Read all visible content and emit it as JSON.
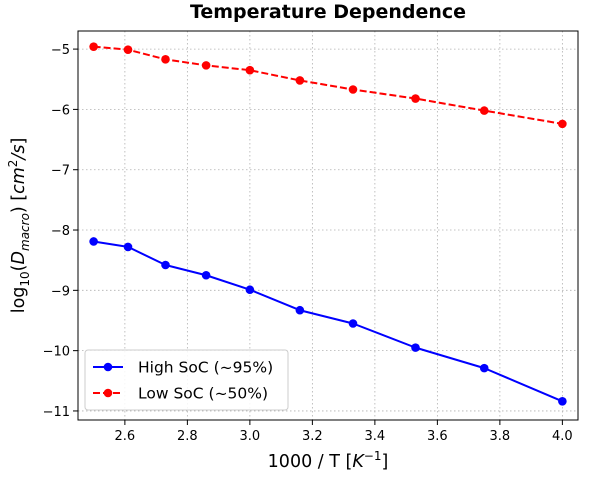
{
  "chart_data": {
    "type": "line",
    "title": "Temperature Dependence",
    "xlabel": "1000 / T [K⁻¹]",
    "ylabel": "log₁₀(D_macro) [cm²/s]",
    "xlim": [
      2.45,
      4.05
    ],
    "ylim": [
      -11.15,
      -4.7
    ],
    "xticks": [
      2.6,
      2.8,
      3.0,
      3.2,
      3.4,
      3.6,
      3.8,
      4.0
    ],
    "xtick_labels": [
      "2.6",
      "2.8",
      "3.0",
      "3.2",
      "3.4",
      "3.6",
      "3.8",
      "4.0"
    ],
    "yticks": [
      -5,
      -6,
      -7,
      -8,
      -9,
      -10,
      -11
    ],
    "ytick_labels": [
      "−5",
      "−6",
      "−7",
      "−8",
      "−9",
      "−10",
      "−11"
    ],
    "grid": true,
    "legend_position": "lower-left",
    "series": [
      {
        "name": "High SoC (~95%)",
        "color": "#0000ff",
        "linestyle": "solid",
        "marker": "circle",
        "x": [
          2.5,
          2.61,
          2.73,
          2.86,
          3.0,
          3.16,
          3.33,
          3.53,
          3.75,
          4.0
        ],
        "values": [
          -8.19,
          -8.28,
          -8.58,
          -8.75,
          -8.99,
          -9.33,
          -9.55,
          -9.95,
          -10.29,
          -10.84
        ]
      },
      {
        "name": "Low SoC (~50%)",
        "color": "#ff0000",
        "linestyle": "dashed",
        "marker": "circle",
        "x": [
          2.5,
          2.61,
          2.73,
          2.86,
          3.0,
          3.16,
          3.33,
          3.53,
          3.75,
          4.0
        ],
        "values": [
          -4.96,
          -5.01,
          -5.17,
          -5.27,
          -5.35,
          -5.52,
          -5.67,
          -5.82,
          -6.02,
          -6.24
        ]
      }
    ]
  }
}
